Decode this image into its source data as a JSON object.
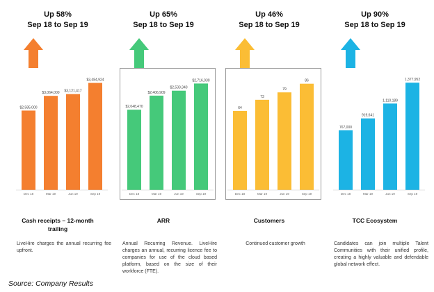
{
  "source": "Source: Company Results",
  "chart_data": [
    {
      "type": "bar",
      "headline_growth": "Up 58%",
      "headline_period": "Sep 18 to Sep 19",
      "caption": [
        "Cash receipts – 12-month",
        "trailing"
      ],
      "description": "LiveHire charges the annual recurring fee upfront.",
      "categories": [
        "Dec 18",
        "Mar 19",
        "Jun 19",
        "Sep 19"
      ],
      "values": [
        2585000,
        3064000,
        3121417,
        3484924
      ],
      "labels": [
        "$2,585,000",
        "$3,064,000",
        "$3,121,417",
        "$3,484,924"
      ],
      "ylim": [
        0,
        3700000
      ],
      "color": "#f47f2f",
      "framed": false
    },
    {
      "type": "bar",
      "headline_growth": "Up 65%",
      "headline_period": "Sep 18 to Sep 19",
      "caption": [
        "ARR"
      ],
      "description": "Annual Recurring Revenue. LiveHire charges an annual, recurring licence fee to companies for use of the cloud based platform, based on the size of their workforce (FTE).",
      "categories": [
        "Dec 18",
        "Mar 19",
        "Jun 19",
        "Sep 19"
      ],
      "values": [
        2048470,
        2406909,
        2533340,
        2716030
      ],
      "labels": [
        "$2,048,470",
        "$2,406,909",
        "$2,533,340",
        "$2,716,030"
      ],
      "ylim": [
        0,
        2900000
      ],
      "color": "#45c97a",
      "framed": true
    },
    {
      "type": "bar",
      "headline_growth": "Up 46%",
      "headline_period": "Sep 18 to Sep 19",
      "caption": [
        "Customers"
      ],
      "description": "Continued customer growth",
      "categories": [
        "Dec 18",
        "Mar 19",
        "Jun 19",
        "Sep 19"
      ],
      "values": [
        64,
        73,
        79,
        86
      ],
      "labels": [
        "64",
        "73",
        "79",
        "86"
      ],
      "ylim": [
        0,
        92
      ],
      "color": "#fbbd35",
      "framed": true
    },
    {
      "type": "bar",
      "headline_growth": "Up 90%",
      "headline_period": "Sep 18 to Sep 19",
      "caption": [
        "TCC Ecosystem"
      ],
      "description": "Candidates can join multiple Talent Communities with their unified profile, creating a highly valuable and defendable global network effect.",
      "categories": [
        "Dec 18",
        "Mar 19",
        "Jun 19",
        "Sep 19"
      ],
      "values": [
        767000,
        919641,
        1110189,
        1377952
      ],
      "labels": [
        "767,000",
        "919,641",
        "1,110,189",
        "1,377,952"
      ],
      "ylim": [
        0,
        1460000
      ],
      "color": "#1cb3e4",
      "framed": false
    }
  ]
}
